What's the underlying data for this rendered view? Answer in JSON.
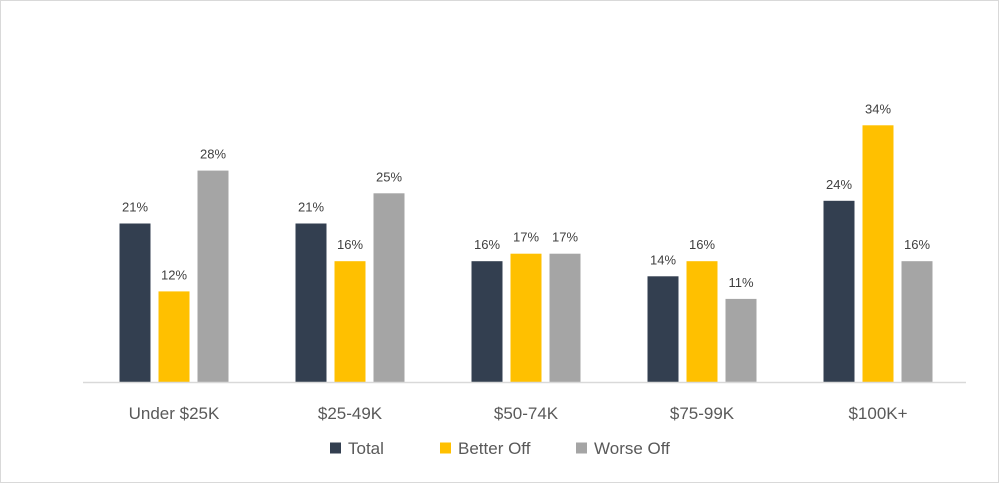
{
  "chart_data": {
    "type": "bar",
    "categories": [
      "Under $25K",
      "$25-49K",
      "$50-74K",
      "$75-99K",
      "$100K+"
    ],
    "series": [
      {
        "name": "Total",
        "values": [
          21,
          21,
          16,
          14,
          24
        ],
        "color": "#333f50"
      },
      {
        "name": "Better Off",
        "values": [
          12,
          16,
          17,
          16,
          34
        ],
        "color": "#ffc000"
      },
      {
        "name": "Worse Off",
        "values": [
          28,
          25,
          17,
          11,
          16
        ],
        "color": "#a5a5a5"
      }
    ],
    "value_suffix": "%",
    "ylim": [
      0,
      40
    ],
    "grid": false,
    "legend_position": "bottom"
  }
}
